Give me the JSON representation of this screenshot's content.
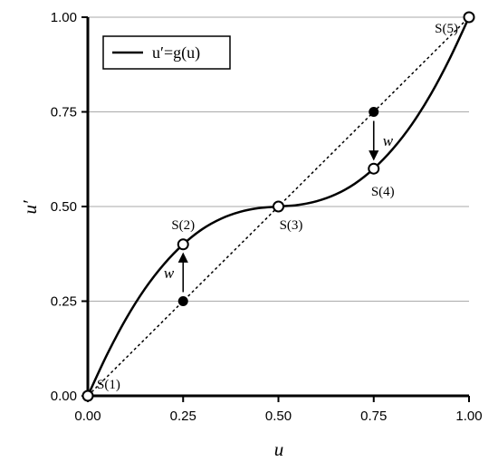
{
  "chart_data": {
    "type": "line",
    "title": "",
    "xlabel": "u",
    "ylabel": "u′",
    "xlim": [
      0,
      1
    ],
    "ylim": [
      0,
      1
    ],
    "grid": "horizontal",
    "x_ticks": [
      "0.00",
      "0.25",
      "0.50",
      "0.75",
      "1.00"
    ],
    "y_ticks": [
      "0.00",
      "0.25",
      "0.50",
      "0.75",
      "1.00"
    ],
    "legend": {
      "position": "top-left",
      "entries": [
        "u′=g(u)"
      ]
    },
    "series": [
      {
        "name": "u′=g(u)",
        "style": "solid",
        "color": "#000000",
        "x": [
          0,
          0.05,
          0.1,
          0.15,
          0.2,
          0.25,
          0.3,
          0.35,
          0.4,
          0.45,
          0.5,
          0.55,
          0.6,
          0.65,
          0.7,
          0.75,
          0.8,
          0.85,
          0.9,
          0.95,
          1.0
        ],
        "y": [
          0,
          0.108,
          0.203,
          0.283,
          0.348,
          0.4,
          0.44,
          0.468,
          0.486,
          0.496,
          0.5,
          0.504,
          0.514,
          0.532,
          0.56,
          0.6,
          0.652,
          0.717,
          0.797,
          0.892,
          1.0
        ]
      },
      {
        "name": "",
        "style": "dotted",
        "color": "#000000",
        "x": [
          0,
          1
        ],
        "y": [
          0,
          1
        ]
      }
    ],
    "points": [
      {
        "label": "S(1)",
        "x": 0,
        "y": 0,
        "marker": "open"
      },
      {
        "label": "S(2)",
        "x": 0.25,
        "y": 0.4,
        "marker": "open"
      },
      {
        "label": "S(3)",
        "x": 0.5,
        "y": 0.5,
        "marker": "open"
      },
      {
        "label": "S(4)",
        "x": 0.75,
        "y": 0.6,
        "marker": "open"
      },
      {
        "label": "S(5)",
        "x": 1.0,
        "y": 1.0,
        "marker": "open"
      },
      {
        "label": "",
        "x": 0.25,
        "y": 0.25,
        "marker": "filled"
      },
      {
        "label": "",
        "x": 0.75,
        "y": 0.75,
        "marker": "filled"
      }
    ],
    "arrows": [
      {
        "label": "w",
        "x": 0.25,
        "from_y": 0.25,
        "to_y": 0.4
      },
      {
        "label": "w",
        "x": 0.75,
        "from_y": 0.75,
        "to_y": 0.6
      }
    ]
  }
}
